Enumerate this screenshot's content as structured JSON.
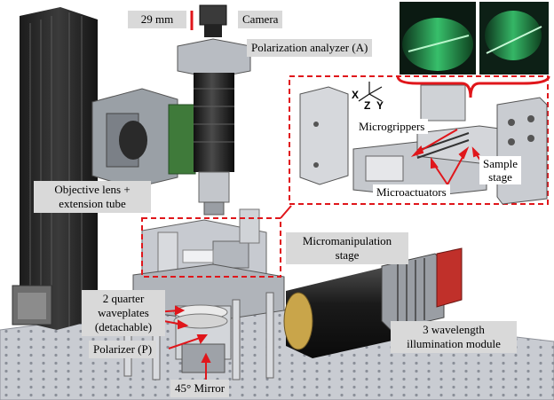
{
  "labels": {
    "dimension": "29 mm",
    "camera": "Camera",
    "analyzer": "Polarization analyzer (A)",
    "objective_line1": "Objective lens +",
    "objective_line2": "extension tube",
    "micromanipulation_line1": "Micromanipulation",
    "micromanipulation_line2": "stage",
    "waveplates_line1": "2 quarter",
    "waveplates_line2": "waveplates",
    "waveplates_line3": "(detachable)",
    "polarizer": "Polarizer (P)",
    "mirror": "45° Mirror",
    "illumination_line1": "3 wavelength",
    "illumination_line2": "illumination module",
    "microgrippers": "Microgrippers",
    "microactuators": "Microactuators",
    "sample_line1": "Sample",
    "sample_line2": "stage"
  },
  "axes": {
    "x": "X",
    "y": "Y",
    "z": "Z"
  },
  "colors": {
    "highlight": "#e0161b",
    "label_bg": "#d9d9d9",
    "frame": "#2a2a2a",
    "green_light": "#3fdc7a"
  }
}
